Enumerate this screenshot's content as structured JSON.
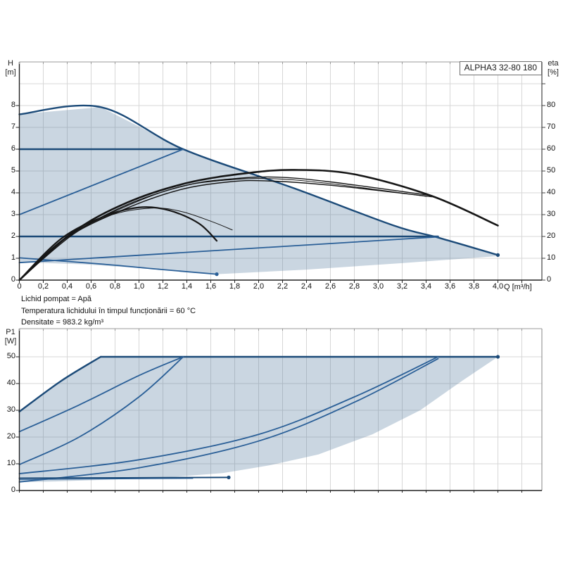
{
  "title_box": {
    "label": "ALPHA3 32-80 180"
  },
  "info_lines": [
    "Lichid pompat = Apă",
    "Temperatura lichidului în timpul funcționării = 60 °C",
    "Densitate = 983.2 kg/m³"
  ],
  "colors": {
    "envelope_fill": "rgba(79,118,157,0.30)",
    "curve_dark_blue": "#1b4a78",
    "curve_mid_blue": "#2a5f97",
    "curve_black": "#161616",
    "grid": "#d7d7d7",
    "axis_dark": "#222222",
    "axis_light": "#999999",
    "eta_axis": "#444444"
  },
  "chart_data": [
    {
      "id": "hq",
      "type": "line",
      "title": "ALPHA3 32-80 180",
      "xlabel": "Q [m³/h]",
      "ylabel_left_line1": "H",
      "ylabel_left_line2": "[m]",
      "ylabel_right_line1": "eta",
      "ylabel_right_line2": "[%]",
      "x_range": [
        0,
        4.37
      ],
      "y_left_range": [
        0,
        10
      ],
      "y_right_range": [
        0,
        100
      ],
      "grid": true,
      "x_tick_step": 0.2,
      "x_tick_labels": [
        "0",
        "0,2",
        "0,4",
        "0,6",
        "0,8",
        "1,0",
        "1,2",
        "1,4",
        "1,6",
        "1,8",
        "2,0",
        "2,2",
        "2,4",
        "2,6",
        "2,8",
        "3,0",
        "3,2",
        "3,4",
        "3,6",
        "3,8",
        "4,0"
      ],
      "y_left_tick_labels": [
        "0",
        "1",
        "2",
        "3",
        "4",
        "5",
        "6",
        "7",
        "8"
      ],
      "y_right_tick_labels": [
        "0",
        "10",
        "20",
        "30",
        "40",
        "50",
        "60",
        "70",
        "80"
      ],
      "envelope": [
        [
          0,
          7.6
        ],
        [
          0.68,
          7.93
        ],
        [
          1.37,
          6.0
        ],
        [
          2.3,
          4.2
        ],
        [
          3.13,
          2.5
        ],
        [
          3.5,
          1.95
        ],
        [
          4.0,
          1.15
        ],
        [
          4.0,
          1.1
        ],
        [
          3.2,
          0.78
        ],
        [
          2.4,
          0.48
        ],
        [
          1.65,
          0.27
        ],
        [
          1.15,
          0.5
        ],
        [
          0.55,
          0.72
        ],
        [
          0,
          0.82
        ]
      ],
      "series": [
        {
          "name": "max-speed-curve",
          "axis": "left",
          "color": "#1b4a78",
          "width": 2.4,
          "smooth": true,
          "end_dot": true,
          "points": [
            [
              0,
              7.6
            ],
            [
              0.68,
              7.93
            ],
            [
              1.37,
              6.0
            ],
            [
              2.3,
              4.2
            ],
            [
              3.13,
              2.5
            ],
            [
              3.5,
              1.95
            ],
            [
              4.0,
              1.15
            ]
          ]
        },
        {
          "name": "const-pressure-6m",
          "axis": "left",
          "color": "#1b4a78",
          "width": 2.4,
          "smooth": false,
          "points": [
            [
              0,
              6
            ],
            [
              1.37,
              6
            ]
          ]
        },
        {
          "name": "prop-pressure-6m",
          "axis": "left",
          "color": "#2a5f97",
          "width": 1.8,
          "smooth": false,
          "points": [
            [
              0,
              3
            ],
            [
              1.37,
              6
            ]
          ]
        },
        {
          "name": "const-pressure-2m",
          "axis": "left",
          "color": "#1b4a78",
          "width": 2.4,
          "smooth": false,
          "points": [
            [
              0,
              2
            ],
            [
              3.5,
              2
            ]
          ]
        },
        {
          "name": "prop-pressure-min",
          "axis": "left",
          "color": "#2a5f97",
          "width": 1.8,
          "smooth": false,
          "points": [
            [
              0,
              0.8
            ],
            [
              3.5,
              1.98
            ]
          ]
        },
        {
          "name": "min-speed-curve",
          "axis": "left",
          "color": "#2a5f97",
          "width": 1.8,
          "smooth": true,
          "end_dot": true,
          "points": [
            [
              0,
              1.02
            ],
            [
              0.7,
              0.73
            ],
            [
              1.2,
              0.48
            ],
            [
              1.65,
              0.27
            ]
          ]
        },
        {
          "name": "eta-max",
          "axis": "right",
          "color": "#161616",
          "width": 2.6,
          "smooth": true,
          "points": [
            [
              0,
              0
            ],
            [
              0.45,
              22
            ],
            [
              0.9,
              35.5
            ],
            [
              1.4,
              44.5
            ],
            [
              1.9,
              49
            ],
            [
              2.3,
              50.5
            ],
            [
              2.8,
              48.5
            ],
            [
              3.45,
              38.5
            ],
            [
              4.0,
              25
            ]
          ]
        },
        {
          "name": "eta-2",
          "axis": "right",
          "color": "#161616",
          "width": 1.4,
          "smooth": true,
          "points": [
            [
              0,
              0
            ],
            [
              0.45,
              21
            ],
            [
              0.9,
              34.5
            ],
            [
              1.4,
              43.5
            ],
            [
              1.8,
              46.5
            ],
            [
              2.15,
              47.2
            ],
            [
              2.6,
              45
            ],
            [
              3.45,
              38.7
            ]
          ]
        },
        {
          "name": "eta-3",
          "axis": "right",
          "color": "#161616",
          "width": 1.4,
          "smooth": true,
          "points": [
            [
              0,
              0
            ],
            [
              0.4,
              19.5
            ],
            [
              0.9,
              33
            ],
            [
              1.35,
              41.5
            ],
            [
              1.75,
              45
            ],
            [
              2.05,
              45.5
            ],
            [
              2.6,
              43.5
            ],
            [
              3.45,
              38.2
            ]
          ]
        },
        {
          "name": "eta-4",
          "axis": "right",
          "color": "#161616",
          "width": 1.0,
          "smooth": true,
          "points": [
            [
              0,
              0
            ],
            [
              0.42,
              20.5
            ],
            [
              0.88,
              33.5
            ],
            [
              1.32,
              42.5
            ],
            [
              1.72,
              45.8
            ],
            [
              2.1,
              46.5
            ],
            [
              2.55,
              44.5
            ],
            [
              3.4,
              38.4
            ]
          ]
        },
        {
          "name": "eta-small-1",
          "axis": "right",
          "color": "#161616",
          "width": 2.2,
          "smooth": true,
          "points": [
            [
              0,
              0
            ],
            [
              0.35,
              19
            ],
            [
              0.7,
              29
            ],
            [
              1.0,
              33.3
            ],
            [
              1.25,
              32
            ],
            [
              1.5,
              26
            ],
            [
              1.65,
              18
            ]
          ]
        },
        {
          "name": "eta-small-2",
          "axis": "right",
          "color": "#161616",
          "width": 1.0,
          "smooth": true,
          "points": [
            [
              0,
              0
            ],
            [
              0.36,
              18.5
            ],
            [
              0.75,
              29.5
            ],
            [
              1.1,
              33
            ],
            [
              1.35,
              31.5
            ],
            [
              1.6,
              27
            ],
            [
              1.78,
              23
            ]
          ]
        }
      ]
    },
    {
      "id": "p1",
      "type": "line",
      "ylabel_left_line1": "P1",
      "ylabel_left_line2": "[W]",
      "x_range": [
        0,
        4.37
      ],
      "y_range": [
        0,
        60
      ],
      "grid": true,
      "y_tick_labels": [
        "0",
        "10",
        "20",
        "30",
        "40",
        "50"
      ],
      "envelope": [
        [
          0,
          29.5
        ],
        [
          0.35,
          41
        ],
        [
          0.68,
          50
        ],
        [
          4.0,
          50
        ],
        [
          3.7,
          41
        ],
        [
          3.35,
          30
        ],
        [
          2.95,
          21
        ],
        [
          2.5,
          13.5
        ],
        [
          2.1,
          9.5
        ],
        [
          1.7,
          6.5
        ],
        [
          1.2,
          4.8
        ],
        [
          0.7,
          4.0
        ],
        [
          0.3,
          3.4
        ],
        [
          0,
          3.1
        ]
      ],
      "series": [
        {
          "name": "p1-max-rise",
          "color": "#1b4a78",
          "width": 2.4,
          "smooth": true,
          "points": [
            [
              0,
              29.5
            ],
            [
              0.35,
              41
            ],
            [
              0.68,
              50
            ]
          ]
        },
        {
          "name": "p1-max-limit",
          "color": "#1b4a78",
          "width": 2.6,
          "smooth": false,
          "end_dot": true,
          "points": [
            [
              0.68,
              50
            ],
            [
              4.0,
              50
            ]
          ]
        },
        {
          "name": "p1-const6",
          "color": "#2a5f97",
          "width": 1.8,
          "smooth": true,
          "points": [
            [
              0,
              22
            ],
            [
              0.5,
              32
            ],
            [
              1.0,
              43
            ],
            [
              1.37,
              50
            ]
          ]
        },
        {
          "name": "p1-prop6",
          "color": "#2a5f97",
          "width": 1.8,
          "smooth": true,
          "points": [
            [
              0,
              9.7
            ],
            [
              0.5,
              20
            ],
            [
              1.0,
              35
            ],
            [
              1.37,
              50
            ]
          ]
        },
        {
          "name": "p1-const2",
          "color": "#2a5f97",
          "width": 1.8,
          "smooth": true,
          "points": [
            [
              0,
              6.3
            ],
            [
              1.0,
              11.5
            ],
            [
              2.0,
              21
            ],
            [
              2.8,
              35
            ],
            [
              3.5,
              50
            ]
          ]
        },
        {
          "name": "p1-propmin",
          "color": "#2a5f97",
          "width": 1.8,
          "smooth": true,
          "points": [
            [
              0,
              3.2
            ],
            [
              1.0,
              8.5
            ],
            [
              2.0,
              18.5
            ],
            [
              2.8,
              33
            ],
            [
              3.5,
              49.3
            ]
          ]
        },
        {
          "name": "p1-minspeed",
          "color": "#1b4a78",
          "width": 2.0,
          "smooth": false,
          "end_dot": true,
          "points": [
            [
              0,
              4.6
            ],
            [
              0.9,
              4.75
            ],
            [
              1.75,
              4.9
            ]
          ]
        },
        {
          "name": "p1-minspeed-2",
          "color": "#2a5f97",
          "width": 1.0,
          "smooth": false,
          "points": [
            [
              0,
              4.1
            ],
            [
              1.45,
              4.5
            ]
          ]
        }
      ]
    }
  ]
}
